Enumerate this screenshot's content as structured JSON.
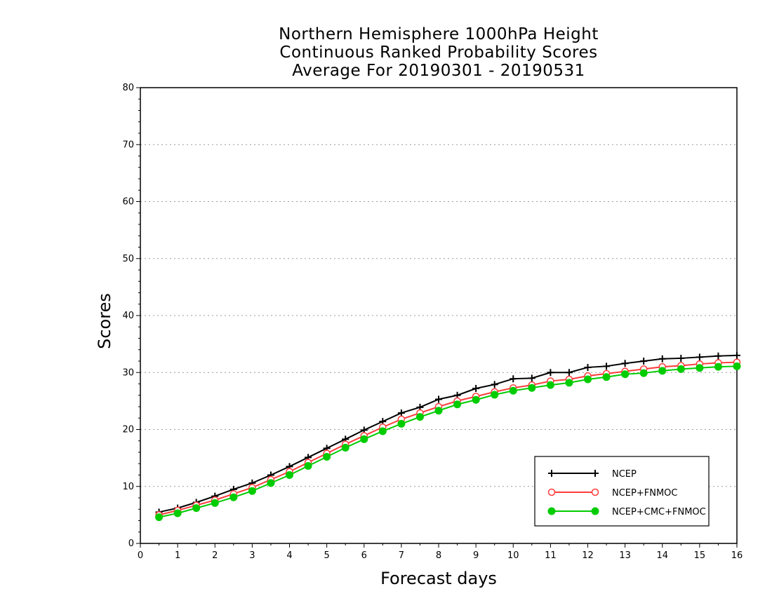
{
  "chart_data": {
    "type": "line",
    "title": [
      "Northern Hemisphere 1000hPa Height",
      "Continuous Ranked Probability Scores",
      "Average For 20190301 - 20190531"
    ],
    "xlabel": "Forecast days",
    "ylabel": "Scores",
    "xlim": [
      0,
      16
    ],
    "ylim": [
      0,
      80
    ],
    "xticks": [
      "0",
      "1",
      "2",
      "3",
      "4",
      "5",
      "6",
      "7",
      "8",
      "9",
      "10",
      "11",
      "12",
      "13",
      "14",
      "15",
      "16"
    ],
    "yticks": [
      "0",
      "10",
      "20",
      "30",
      "40",
      "50",
      "60",
      "70",
      "80"
    ],
    "grid": "horizontal dotted",
    "legend_position": "bottom-right",
    "x": [
      0.5,
      1,
      1.5,
      2,
      2.5,
      3,
      3.5,
      4,
      4.5,
      5,
      5.5,
      6,
      6.5,
      7,
      7.5,
      8,
      8.5,
      9,
      9.5,
      10,
      10.5,
      11,
      11.5,
      12,
      12.5,
      13,
      13.5,
      14,
      14.5,
      15,
      15.5,
      16
    ],
    "series": [
      {
        "name": "NCEP",
        "color": "#000000",
        "marker": "plus",
        "values": [
          5.5,
          6.2,
          7.2,
          8.3,
          9.5,
          10.6,
          12.0,
          13.5,
          15.1,
          16.7,
          18.3,
          19.9,
          21.4,
          22.9,
          23.9,
          25.3,
          26.0,
          27.2,
          27.9,
          28.9,
          29.0,
          30.0,
          30.0,
          30.9,
          31.1,
          31.6,
          32.0,
          32.4,
          32.5,
          32.7,
          32.9,
          33.0
        ]
      },
      {
        "name": "NCEP+FNMOC",
        "color": "#ff3b3b",
        "marker": "open-circle",
        "values": [
          5.0,
          5.8,
          6.7,
          7.6,
          8.7,
          9.8,
          11.2,
          12.6,
          14.2,
          15.8,
          17.4,
          18.9,
          20.4,
          21.8,
          22.9,
          24.0,
          25.0,
          25.8,
          26.6,
          27.3,
          27.8,
          28.5,
          28.8,
          29.4,
          29.8,
          30.2,
          30.6,
          31.0,
          31.2,
          31.5,
          31.7,
          31.8
        ]
      },
      {
        "name": "NCEP+CMC+FNMOC",
        "color": "#00cc00",
        "marker": "filled-circle",
        "values": [
          4.6,
          5.3,
          6.2,
          7.1,
          8.1,
          9.2,
          10.6,
          12.0,
          13.6,
          15.2,
          16.8,
          18.3,
          19.7,
          21.0,
          22.2,
          23.3,
          24.4,
          25.2,
          26.1,
          26.8,
          27.3,
          27.8,
          28.2,
          28.8,
          29.2,
          29.7,
          29.9,
          30.3,
          30.6,
          30.8,
          31.0,
          31.1
        ]
      }
    ]
  }
}
